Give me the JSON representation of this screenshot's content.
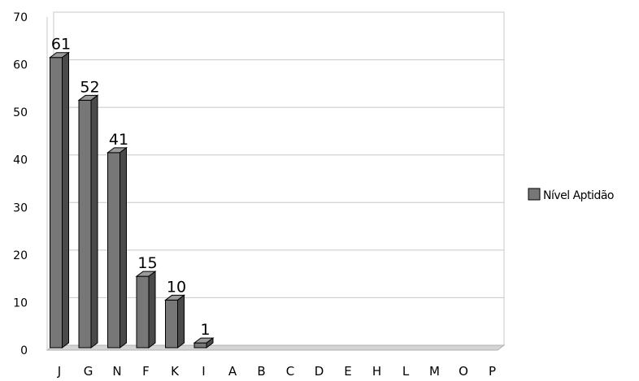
{
  "chart_data": {
    "type": "bar",
    "title": "",
    "xlabel": "",
    "ylabel": "",
    "categories": [
      "J",
      "G",
      "N",
      "F",
      "K",
      "I",
      "A",
      "B",
      "C",
      "D",
      "E",
      "H",
      "L",
      "M",
      "O",
      "P"
    ],
    "series": [
      {
        "name": "Nível Aptidão",
        "values": [
          61,
          52,
          41,
          15,
          10,
          1,
          0,
          0,
          0,
          0,
          0,
          0,
          0,
          0,
          0,
          0
        ],
        "color": "#777777"
      }
    ],
    "data_labels": [
      "61",
      "52",
      "41",
      "15",
      "10",
      "1",
      "",
      "",
      "",
      "",
      "",
      "",
      "",
      "",
      "",
      ""
    ],
    "ylim": [
      0,
      70
    ],
    "yticks": [
      0,
      10,
      20,
      30,
      40,
      50,
      60,
      70
    ],
    "grid": true,
    "legend_position": "right",
    "style": "3d-bar"
  }
}
